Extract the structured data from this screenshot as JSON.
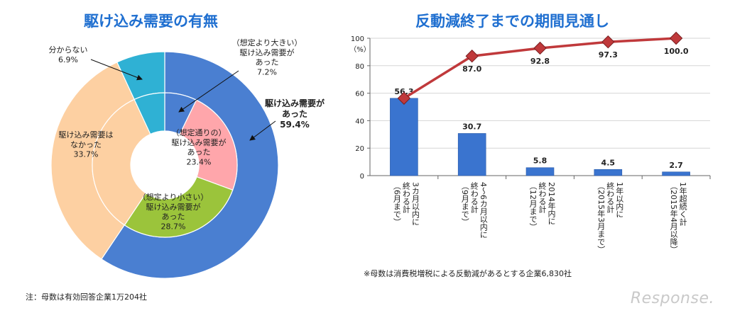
{
  "left": {
    "title": "駆け込み需要の有無",
    "note": "注：母数は有効回答企業1万204社",
    "chart_data": {
      "type": "pie",
      "outer": [
        {
          "label": "駆け込み需要が\nあった",
          "value": 59.4,
          "color": "#4a7fd1",
          "display": "59.4%"
        },
        {
          "label": "駆け込み需要は\nなかった",
          "value": 33.7,
          "color": "#fdd0a2"
        },
        {
          "label": "分からない",
          "value": 6.9,
          "color": "#2fb1d4"
        }
      ],
      "inner": [
        {
          "label": "（想定より大きい）\n駆け込み需要が\nあった",
          "value": 7.2,
          "color": "#4a7fd1",
          "display": "7.2%"
        },
        {
          "label": "（想定通りの）\n駆け込み需要が\nあった",
          "value": 23.4,
          "color": "#ffa6ab",
          "display": "23.4%"
        },
        {
          "label": "（想定より小さい）\n駆け込み需要が\nあった",
          "value": 28.7,
          "color": "#9bc43b",
          "display": "28.7%"
        },
        {
          "label": "駆け込み需要は\nなかった",
          "value": 33.7,
          "color": "#fdd0a2",
          "display": "33.7%"
        },
        {
          "label": "分からない",
          "value": 6.9,
          "color": "#2fb1d4",
          "display": "6.9%"
        }
      ]
    }
  },
  "right": {
    "title": "反動減終了までの期間見通し",
    "note": "※母数は消費税増税による反動減があるとする企業6,830社",
    "chart_data": {
      "type": "bar",
      "ylabel": "（%）",
      "ylim": [
        0,
        100
      ],
      "yticks": [
        0,
        20,
        40,
        60,
        80,
        100
      ],
      "categories": [
        "3カ月以内に終わる計（6月まで）",
        "4～6カ月以内に終わる計（9月まで）",
        "2014年内に終わる計（12月まで）",
        "1年以内に終わる計（2015年3月まで）",
        "1年超続く計（2015年4月以降）"
      ],
      "category_lines": [
        [
          "3カ月以内に",
          "終わる計",
          "（6月まで）"
        ],
        [
          "4～6カ月以内に",
          "終わる計",
          "（9月まで）"
        ],
        [
          "2014年内に",
          "終わる計",
          "（12月まで）"
        ],
        [
          "1年以内に",
          "終わる計",
          "（2015年3月まで）"
        ],
        [
          "1年超続く計",
          "（2015年4月以降）"
        ]
      ],
      "bar_values": [
        56.3,
        30.7,
        5.8,
        4.5,
        2.7
      ],
      "line_values": [
        56.3,
        87.0,
        92.8,
        97.3,
        100.0
      ],
      "bar_color": "#3a74cf",
      "line_color": "#c0393b",
      "grid": true
    }
  },
  "logo": "Response."
}
